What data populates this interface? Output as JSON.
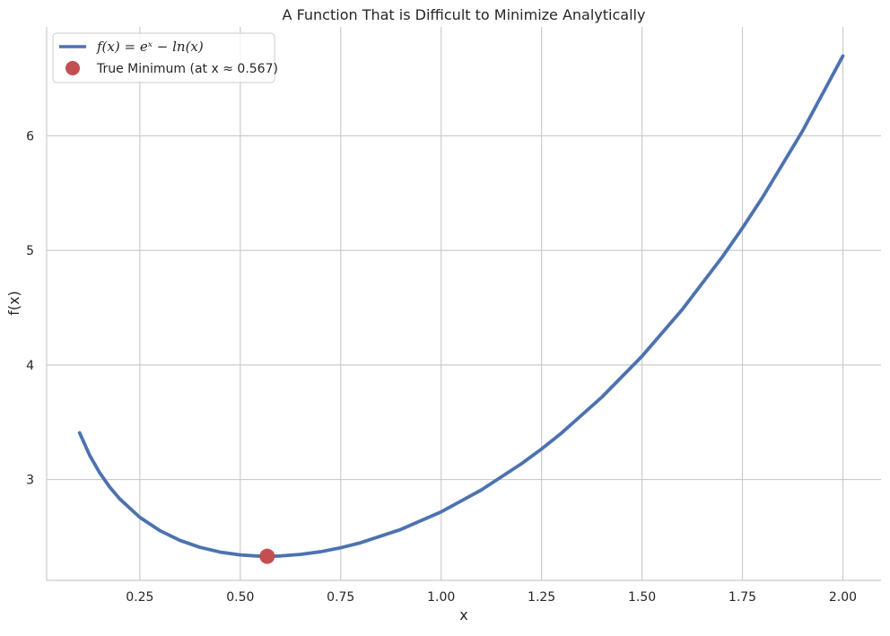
{
  "chart_data": {
    "type": "line",
    "title": "A Function That is Difficult to Minimize Analytically",
    "xlabel": "x",
    "ylabel": "f(x)",
    "xlim": [
      0.018,
      2.095
    ],
    "ylim": [
      2.12,
      6.95
    ],
    "xticks": [
      0.25,
      0.5,
      0.75,
      1.0,
      1.25,
      1.5,
      1.75,
      2.0
    ],
    "xtick_labels": [
      "0.25",
      "0.50",
      "0.75",
      "1.00",
      "1.25",
      "1.50",
      "1.75",
      "2.00"
    ],
    "yticks": [
      3,
      4,
      5,
      6
    ],
    "ytick_labels": [
      "3",
      "4",
      "5",
      "6"
    ],
    "grid": true,
    "legend_position": "top-left",
    "series": [
      {
        "name": "f(x) = eˣ − ln(x)",
        "kind": "line",
        "color": "#4c72b0",
        "function": "exp(x) - ln(x)",
        "x": [
          0.1,
          0.125,
          0.15,
          0.175,
          0.2,
          0.25,
          0.3,
          0.35,
          0.4,
          0.45,
          0.5,
          0.55,
          0.567,
          0.6,
          0.65,
          0.7,
          0.75,
          0.8,
          0.9,
          1.0,
          1.1,
          1.2,
          1.25,
          1.3,
          1.4,
          1.5,
          1.6,
          1.7,
          1.75,
          1.8,
          1.9,
          2.0
        ],
        "y": [
          3.408,
          3.212,
          3.059,
          2.934,
          2.831,
          2.67,
          2.554,
          2.469,
          2.408,
          2.367,
          2.342,
          2.331,
          2.33,
          2.333,
          2.347,
          2.37,
          2.405,
          2.449,
          2.565,
          2.718,
          2.909,
          3.138,
          3.267,
          3.407,
          3.719,
          4.076,
          4.483,
          4.943,
          5.195,
          5.462,
          6.044,
          6.696
        ]
      },
      {
        "name": "True Minimum (at x ≈ 0.567)",
        "kind": "point",
        "color": "#c44e52",
        "x": [
          0.567
        ],
        "y": [
          2.33
        ]
      }
    ]
  }
}
